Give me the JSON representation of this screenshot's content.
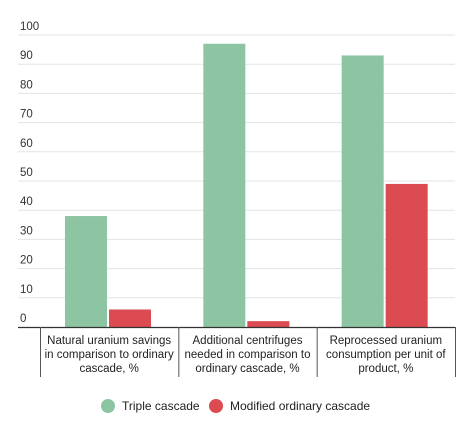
{
  "chart_data": {
    "type": "bar",
    "title": "",
    "xlabel": "",
    "ylabel": "",
    "ylim": [
      0,
      100
    ],
    "yticks": [
      0,
      10,
      20,
      30,
      40,
      50,
      60,
      70,
      80,
      90,
      100
    ],
    "grid": true,
    "legend_position": "bottom",
    "categories": [
      [
        "Natural uranium savings",
        "in comparison to ordinary",
        "cascade, %"
      ],
      [
        "Additional centrifuges",
        "needed in comparison to",
        "ordinary cascade, %"
      ],
      [
        "Reprocessed uranium",
        "consumption per unit of",
        "product, %"
      ]
    ],
    "series": [
      {
        "name": "Triple cascade",
        "color": "#8dc5a3",
        "values": [
          38,
          97,
          93
        ]
      },
      {
        "name": "Modified ordinary cascade",
        "color": "#dc4b51",
        "values": [
          6,
          2,
          49
        ]
      }
    ]
  }
}
